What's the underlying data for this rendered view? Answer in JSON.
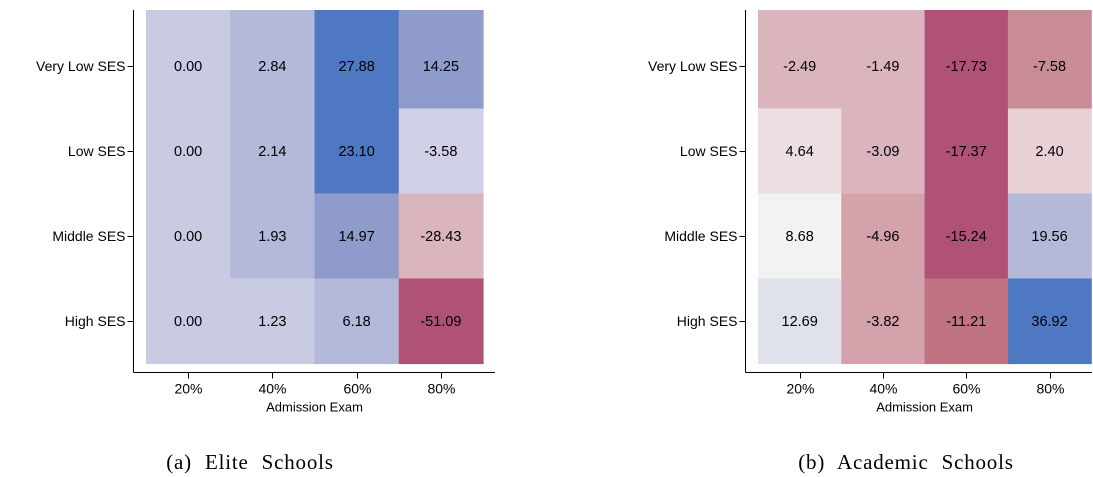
{
  "chart_data": [
    {
      "type": "heatmap",
      "caption": "(a) Elite Schools",
      "xlabel": "Admission Exam",
      "x_categories": [
        "20%",
        "40%",
        "60%",
        "80%"
      ],
      "y_categories": [
        "Very Low SES",
        "Low SES",
        "Middle SES",
        "High SES"
      ],
      "values": [
        [
          0.0,
          2.84,
          27.88,
          14.25
        ],
        [
          0.0,
          2.14,
          23.1,
          -3.58
        ],
        [
          0.0,
          1.93,
          14.97,
          -28.43
        ],
        [
          0.0,
          1.23,
          6.18,
          -51.09
        ]
      ],
      "value_labels": [
        [
          "0.00",
          "2.84",
          "27.88",
          "14.25"
        ],
        [
          "0.00",
          "2.14",
          "23.10",
          "-3.58"
        ],
        [
          "0.00",
          "1.93",
          "14.97",
          "-28.43"
        ],
        [
          "0.00",
          "1.23",
          "6.18",
          "-51.09"
        ]
      ],
      "colors": [
        [
          "#c9cbe3",
          "#b4b8d9",
          "#4f78c3",
          "#8f9bcb"
        ],
        [
          "#c9cbe3",
          "#b4b8d9",
          "#4f78c3",
          "#d0d1e6"
        ],
        [
          "#c9cbe3",
          "#b4b8d9",
          "#8f9bcb",
          "#dbb5bd"
        ],
        [
          "#c9cbe3",
          "#c9cbe3",
          "#b4b8d9",
          "#b05278"
        ]
      ],
      "grid": false
    },
    {
      "type": "heatmap",
      "caption": "(b) Academic Schools",
      "xlabel": "Admission Exam",
      "x_categories": [
        "20%",
        "40%",
        "60%",
        "80%"
      ],
      "y_categories": [
        "Very Low SES",
        "Low SES",
        "Middle SES",
        "High SES"
      ],
      "values": [
        [
          -2.49,
          -1.49,
          -17.73,
          -7.58
        ],
        [
          4.64,
          -3.09,
          -17.37,
          2.4
        ],
        [
          8.68,
          -4.96,
          -15.24,
          19.56
        ],
        [
          12.69,
          -3.82,
          -11.21,
          36.92
        ]
      ],
      "value_labels": [
        [
          "-2.49",
          "-1.49",
          "-17.73",
          "-7.58"
        ],
        [
          "4.64",
          "-3.09",
          "-17.37",
          "2.40"
        ],
        [
          "8.68",
          "-4.96",
          "-15.24",
          "19.56"
        ],
        [
          "12.69",
          "-3.82",
          "-11.21",
          "36.92"
        ]
      ],
      "colors": [
        [
          "#dbb5bd",
          "#dbb5bd",
          "#b05278",
          "#c98b95"
        ],
        [
          "#ebdfe2",
          "#dbb5bd",
          "#b05278",
          "#e8d0d5"
        ],
        [
          "#f2f2f2",
          "#d3a2ab",
          "#b05278",
          "#b4b8d9"
        ],
        [
          "#dfe1eb",
          "#d3a2ab",
          "#bf7383",
          "#4f78c3"
        ]
      ],
      "grid": false
    }
  ]
}
